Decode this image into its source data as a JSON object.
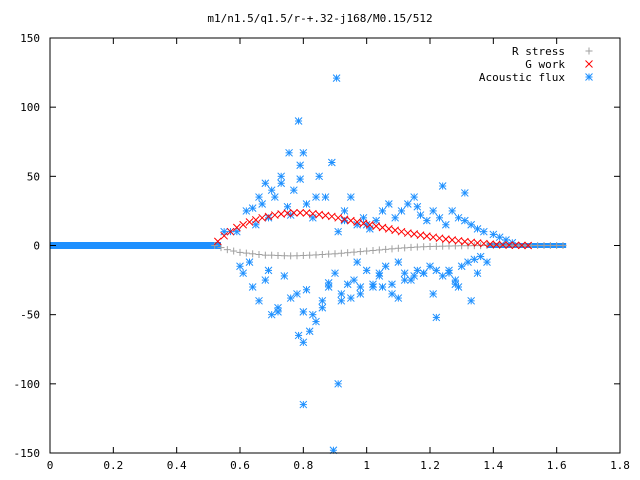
{
  "chart_data": {
    "type": "scatter",
    "title": "m1/n1.5/q1.5/r-+.32-j168/M0.15/512",
    "xlabel": "",
    "ylabel": "",
    "xlim": [
      0,
      1.8
    ],
    "ylim": [
      -150,
      150
    ],
    "x_ticks": [
      0,
      0.2,
      0.4,
      0.6,
      0.8,
      1,
      1.2,
      1.4,
      1.6,
      1.8
    ],
    "x_tick_labels": [
      "0",
      "0.2",
      "0.4",
      "0.6",
      "0.8",
      "1",
      "1.2",
      "1.4",
      "1.6",
      "1.8"
    ],
    "y_ticks": [
      -150,
      -100,
      -50,
      0,
      50,
      100,
      150
    ],
    "y_tick_labels": [
      "-150",
      "-100",
      "-50",
      "0",
      "50",
      "100",
      "150"
    ],
    "grid": false,
    "legend_position": "top-right",
    "series": [
      {
        "name": "R stress",
        "marker": "plus",
        "color": "#a0a0a0",
        "x": [
          0.52,
          0.54,
          0.56,
          0.58,
          0.6,
          0.62,
          0.64,
          0.66,
          0.68,
          0.7,
          0.72,
          0.74,
          0.76,
          0.78,
          0.8,
          0.82,
          0.84,
          0.86,
          0.88,
          0.9,
          0.92,
          0.94,
          0.96,
          0.98,
          1.0,
          1.02,
          1.04,
          1.06,
          1.08,
          1.1,
          1.12,
          1.14,
          1.16,
          1.18,
          1.2,
          1.22,
          1.24,
          1.26,
          1.28,
          1.3,
          1.32,
          1.34,
          1.36,
          1.38,
          1.4,
          1.42,
          1.44,
          1.46,
          1.48,
          1.5,
          1.52,
          1.54,
          1.56,
          1.58,
          1.6,
          1.62
        ],
        "y": [
          0,
          -1.5,
          -3,
          -4,
          -5,
          -5.5,
          -6,
          -6.5,
          -7,
          -7,
          -7.2,
          -7.4,
          -7.5,
          -7.4,
          -7.2,
          -7,
          -6.8,
          -6.5,
          -6.2,
          -6,
          -5.6,
          -5.2,
          -4.8,
          -4.4,
          -4,
          -3.6,
          -3.2,
          -2.8,
          -2.4,
          -2,
          -1.7,
          -1.4,
          -1.1,
          -0.9,
          -0.7,
          -0.6,
          -0.5,
          -0.4,
          -0.3,
          -0.2,
          -0.2,
          -0.1,
          -0.1,
          0,
          0,
          0,
          0,
          0,
          0,
          0,
          0,
          0,
          0,
          0,
          0,
          0
        ]
      },
      {
        "name": "G work",
        "marker": "cross",
        "color": "#ff0000",
        "x": [
          0.53,
          0.55,
          0.57,
          0.59,
          0.61,
          0.63,
          0.65,
          0.67,
          0.69,
          0.71,
          0.73,
          0.75,
          0.77,
          0.79,
          0.81,
          0.83,
          0.85,
          0.87,
          0.89,
          0.91,
          0.93,
          0.95,
          0.97,
          0.99,
          1.01,
          1.03,
          1.05,
          1.07,
          1.09,
          1.11,
          1.13,
          1.15,
          1.17,
          1.19,
          1.21,
          1.23,
          1.25,
          1.27,
          1.29,
          1.31,
          1.33,
          1.35,
          1.37,
          1.39,
          1.41,
          1.43,
          1.45,
          1.47,
          1.49,
          1.51
        ],
        "y": [
          3,
          7,
          10,
          13,
          15,
          17,
          18.5,
          20,
          21,
          22,
          22.8,
          23.3,
          23.6,
          23.7,
          23.5,
          23,
          22.4,
          21.7,
          21,
          20,
          19,
          18,
          17,
          16,
          15,
          14,
          13,
          12,
          11,
          10,
          9,
          8.3,
          7.5,
          6.8,
          6,
          5.3,
          4.6,
          4,
          3.4,
          2.8,
          2.3,
          1.8,
          1.4,
          1,
          0.7,
          0.5,
          0.3,
          0.2,
          0.1,
          0
        ]
      },
      {
        "name": "Acoustic flux",
        "marker": "star",
        "color": "#1e90ff",
        "x": [
          0.55,
          0.57,
          0.59,
          0.6,
          0.61,
          0.62,
          0.63,
          0.64,
          0.65,
          0.66,
          0.67,
          0.68,
          0.69,
          0.7,
          0.71,
          0.72,
          0.73,
          0.74,
          0.75,
          0.76,
          0.77,
          0.78,
          0.79,
          0.8,
          0.81,
          0.82,
          0.83,
          0.84,
          0.85,
          0.86,
          0.87,
          0.88,
          0.89,
          0.9,
          0.91,
          0.92,
          0.93,
          0.94,
          0.95,
          0.96,
          0.97,
          0.98,
          0.99,
          1.0,
          1.01,
          1.02,
          1.03,
          1.04,
          1.05,
          1.06,
          1.07,
          1.08,
          1.09,
          1.1,
          1.11,
          1.12,
          1.13,
          1.14,
          1.15,
          1.16,
          1.17,
          1.18,
          1.19,
          1.2,
          1.21,
          1.22,
          1.23,
          1.24,
          1.25,
          1.26,
          1.27,
          1.28,
          1.29,
          1.3,
          1.31,
          1.32,
          1.33,
          1.34,
          1.35,
          1.36,
          1.37,
          1.38,
          1.4,
          1.42,
          1.44,
          1.46,
          0.785,
          0.8,
          0.905,
          0.8,
          0.91,
          0.895,
          0.755,
          0.79,
          0.68,
          0.7,
          0.66,
          0.73,
          0.785,
          0.8,
          0.83,
          0.86,
          0.92,
          0.95,
          0.98,
          1.02,
          1.05,
          1.08,
          1.12,
          1.15,
          1.18,
          1.22,
          1.26,
          1.29,
          1.33,
          0.64,
          0.69,
          0.72,
          0.76,
          0.81,
          0.84,
          0.88,
          0.93,
          0.97,
          1.0,
          1.04,
          1.1,
          1.16,
          1.21,
          1.24,
          1.28,
          1.31,
          1.35
        ],
        "y": [
          10,
          10,
          10,
          -15,
          -20,
          25,
          -12,
          -30,
          15,
          -40,
          30,
          -25,
          20,
          -50,
          35,
          -45,
          45,
          -22,
          28,
          -38,
          40,
          -35,
          48,
          -48,
          30,
          -62,
          20,
          -55,
          50,
          -40,
          35,
          -30,
          60,
          -20,
          10,
          -35,
          25,
          -28,
          35,
          -25,
          15,
          -30,
          20,
          -18,
          12,
          -28,
          18,
          -22,
          25,
          -15,
          30,
          -35,
          20,
          -12,
          25,
          -20,
          30,
          -25,
          35,
          -18,
          22,
          -20,
          18,
          -15,
          25,
          -52,
          20,
          -22,
          15,
          -18,
          25,
          -28,
          20,
          -15,
          18,
          -12,
          15,
          -10,
          12,
          -8,
          10,
          -12,
          8,
          6,
          4,
          2,
          90,
          67,
          121,
          -115,
          -100,
          -148,
          67,
          58,
          45,
          40,
          35,
          50,
          -65,
          -70,
          -50,
          -45,
          -40,
          -38,
          -35,
          -30,
          -30,
          -28,
          -25,
          -22,
          -20,
          -18,
          -20,
          -30,
          -40,
          27,
          -18,
          -48,
          22,
          -32,
          35,
          -27,
          18,
          -12,
          15,
          -20,
          -38,
          28,
          -35,
          43,
          -25,
          38,
          -20
        ]
      }
    ]
  },
  "zero_line_color": "#1e90ff"
}
